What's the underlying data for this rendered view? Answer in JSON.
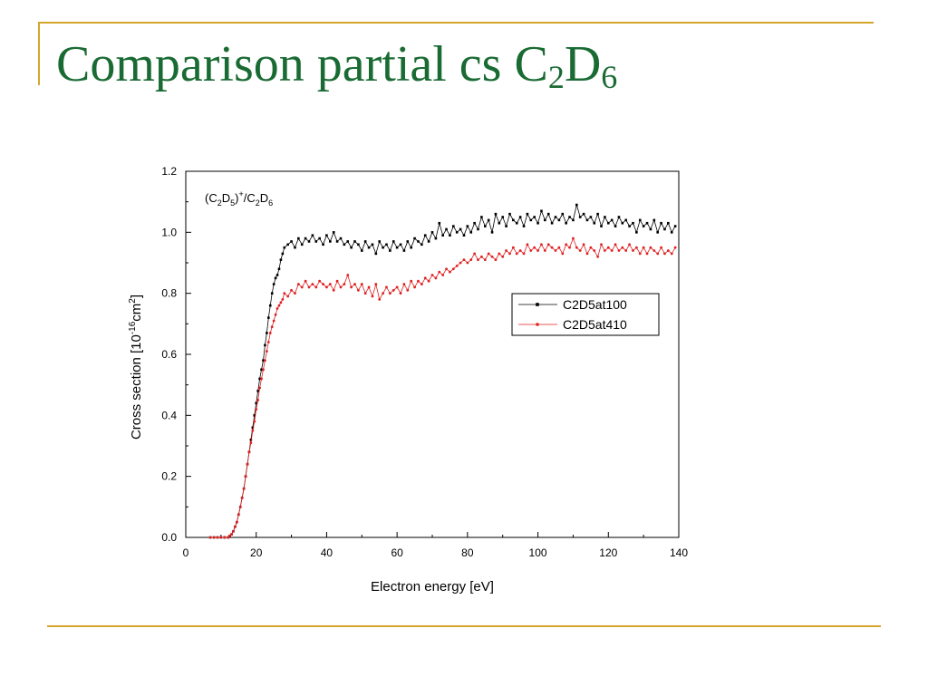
{
  "slide": {
    "title": {
      "text": "Comparison partial cs C",
      "sub1": "2",
      "mid": "D",
      "sub2": "6"
    },
    "accent_color": "#d4a72c",
    "title_color": "#1a6b33"
  },
  "chart_data": {
    "type": "line",
    "annotation": {
      "p1": "(C",
      "s1": "2",
      "p2": "D",
      "s2": "5",
      "p3": ")",
      "sup": "+",
      "p4": "/C",
      "s3": "2",
      "p5": "D",
      "s4": "6"
    },
    "xlabel": "Electron energy [eV]",
    "ylabel": {
      "pre": "Cross section [10",
      "sup1": "-16",
      "mid": "cm",
      "sup2": "2",
      "post": "]"
    },
    "xlim": [
      0,
      140
    ],
    "ylim": [
      0,
      1.2
    ],
    "x_ticks": [
      0,
      20,
      40,
      60,
      80,
      100,
      120,
      140
    ],
    "y_ticks": [
      "0.0",
      "0.2",
      "0.4",
      "0.6",
      "0.8",
      "1.0",
      "1.2"
    ],
    "legend_position": "right",
    "grid": false,
    "series": [
      {
        "name": "C2D5at100",
        "color": "#000000",
        "marker": "square",
        "points": [
          [
            7,
            0
          ],
          [
            8,
            0
          ],
          [
            9,
            0
          ],
          [
            10,
            0
          ],
          [
            11,
            0
          ],
          [
            12,
            0
          ],
          [
            12.5,
            0.005
          ],
          [
            13,
            0.01
          ],
          [
            13.5,
            0.02
          ],
          [
            14,
            0.035
          ],
          [
            14.5,
            0.05
          ],
          [
            15,
            0.075
          ],
          [
            15.5,
            0.1
          ],
          [
            16,
            0.13
          ],
          [
            16.5,
            0.16
          ],
          [
            17,
            0.2
          ],
          [
            17.5,
            0.24
          ],
          [
            18,
            0.28
          ],
          [
            18.5,
            0.32
          ],
          [
            19,
            0.36
          ],
          [
            19.5,
            0.4
          ],
          [
            20,
            0.44
          ],
          [
            20.5,
            0.48
          ],
          [
            21,
            0.52
          ],
          [
            21.5,
            0.55
          ],
          [
            22,
            0.58
          ],
          [
            22.5,
            0.63
          ],
          [
            23,
            0.67
          ],
          [
            23.5,
            0.72
          ],
          [
            24,
            0.76
          ],
          [
            24.5,
            0.8
          ],
          [
            25,
            0.83
          ],
          [
            25.5,
            0.85
          ],
          [
            26,
            0.86
          ],
          [
            26.5,
            0.88
          ],
          [
            27,
            0.91
          ],
          [
            27.5,
            0.93
          ],
          [
            28,
            0.95
          ],
          [
            29,
            0.96
          ],
          [
            30,
            0.97
          ],
          [
            31,
            0.95
          ],
          [
            32,
            0.98
          ],
          [
            33,
            0.96
          ],
          [
            34,
            0.98
          ],
          [
            35,
            0.97
          ],
          [
            36,
            0.99
          ],
          [
            37,
            0.97
          ],
          [
            38,
            0.98
          ],
          [
            39,
            0.96
          ],
          [
            40,
            0.99
          ],
          [
            41,
            0.97
          ],
          [
            42,
            1.0
          ],
          [
            43,
            0.97
          ],
          [
            44,
            0.98
          ],
          [
            45,
            0.96
          ],
          [
            46,
            0.97
          ],
          [
            47,
            0.95
          ],
          [
            48,
            0.97
          ],
          [
            49,
            0.96
          ],
          [
            50,
            0.94
          ],
          [
            51,
            0.97
          ],
          [
            52,
            0.95
          ],
          [
            53,
            0.96
          ],
          [
            54,
            0.93
          ],
          [
            55,
            0.97
          ],
          [
            56,
            0.95
          ],
          [
            57,
            0.96
          ],
          [
            58,
            0.94
          ],
          [
            59,
            0.97
          ],
          [
            60,
            0.95
          ],
          [
            61,
            0.96
          ],
          [
            62,
            0.94
          ],
          [
            63,
            0.97
          ],
          [
            64,
            0.95
          ],
          [
            65,
            0.98
          ],
          [
            66,
            0.97
          ],
          [
            67,
            0.96
          ],
          [
            68,
            0.99
          ],
          [
            69,
            0.97
          ],
          [
            70,
            1.0
          ],
          [
            71,
            0.98
          ],
          [
            72,
            1.03
          ],
          [
            73,
            0.99
          ],
          [
            74,
            1.01
          ],
          [
            75,
            0.99
          ],
          [
            76,
            1.02
          ],
          [
            77,
            1.0
          ],
          [
            78,
            1.01
          ],
          [
            79,
            0.99
          ],
          [
            80,
            1.02
          ],
          [
            81,
            1.0
          ],
          [
            82,
            1.03
          ],
          [
            83,
            1.01
          ],
          [
            84,
            1.05
          ],
          [
            85,
            1.02
          ],
          [
            86,
            1.04
          ],
          [
            87,
            1.0
          ],
          [
            88,
            1.06
          ],
          [
            89,
            1.03
          ],
          [
            90,
            1.05
          ],
          [
            91,
            1.02
          ],
          [
            92,
            1.06
          ],
          [
            93,
            1.04
          ],
          [
            94,
            1.03
          ],
          [
            95,
            1.05
          ],
          [
            96,
            1.02
          ],
          [
            97,
            1.06
          ],
          [
            98,
            1.04
          ],
          [
            99,
            1.05
          ],
          [
            100,
            1.03
          ],
          [
            101,
            1.07
          ],
          [
            102,
            1.04
          ],
          [
            103,
            1.06
          ],
          [
            104,
            1.03
          ],
          [
            105,
            1.05
          ],
          [
            106,
            1.04
          ],
          [
            107,
            1.06
          ],
          [
            108,
            1.03
          ],
          [
            109,
            1.05
          ],
          [
            110,
            1.04
          ],
          [
            111,
            1.09
          ],
          [
            112,
            1.05
          ],
          [
            113,
            1.06
          ],
          [
            114,
            1.04
          ],
          [
            115,
            1.05
          ],
          [
            116,
            1.03
          ],
          [
            117,
            1.06
          ],
          [
            118,
            1.02
          ],
          [
            119,
            1.05
          ],
          [
            120,
            1.03
          ],
          [
            121,
            1.04
          ],
          [
            122,
            1.02
          ],
          [
            123,
            1.05
          ],
          [
            124,
            1.03
          ],
          [
            125,
            1.04
          ],
          [
            126,
            1.02
          ],
          [
            127,
            1.03
          ],
          [
            128,
            1.0
          ],
          [
            129,
            1.04
          ],
          [
            130,
            1.02
          ],
          [
            131,
            1.03
          ],
          [
            132,
            1.01
          ],
          [
            133,
            1.04
          ],
          [
            134,
            1.0
          ],
          [
            135,
            1.03
          ],
          [
            136,
            1.01
          ],
          [
            137,
            1.03
          ],
          [
            138,
            1.0
          ],
          [
            139,
            1.02
          ]
        ]
      },
      {
        "name": "C2D5at410",
        "color": "#e02020",
        "marker": "circle",
        "points": [
          [
            7,
            0
          ],
          [
            8,
            0
          ],
          [
            9,
            0
          ],
          [
            10,
            0
          ],
          [
            11,
            0
          ],
          [
            12,
            0
          ],
          [
            12.5,
            0.005
          ],
          [
            13,
            0.01
          ],
          [
            13.5,
            0.02
          ],
          [
            14,
            0.035
          ],
          [
            14.5,
            0.05
          ],
          [
            15,
            0.075
          ],
          [
            15.5,
            0.1
          ],
          [
            16,
            0.13
          ],
          [
            16.5,
            0.16
          ],
          [
            17,
            0.2
          ],
          [
            17.5,
            0.24
          ],
          [
            18,
            0.28
          ],
          [
            18.5,
            0.31
          ],
          [
            19,
            0.35
          ],
          [
            19.5,
            0.38
          ],
          [
            20,
            0.42
          ],
          [
            20.5,
            0.45
          ],
          [
            21,
            0.49
          ],
          [
            21.5,
            0.52
          ],
          [
            22,
            0.55
          ],
          [
            22.5,
            0.58
          ],
          [
            23,
            0.61
          ],
          [
            23.5,
            0.64
          ],
          [
            24,
            0.67
          ],
          [
            24.5,
            0.69
          ],
          [
            25,
            0.71
          ],
          [
            25.5,
            0.73
          ],
          [
            26,
            0.75
          ],
          [
            26.5,
            0.76
          ],
          [
            27,
            0.77
          ],
          [
            27.5,
            0.78
          ],
          [
            28,
            0.8
          ],
          [
            29,
            0.79
          ],
          [
            30,
            0.81
          ],
          [
            31,
            0.8
          ],
          [
            32,
            0.83
          ],
          [
            33,
            0.82
          ],
          [
            34,
            0.84
          ],
          [
            35,
            0.82
          ],
          [
            36,
            0.83
          ],
          [
            37,
            0.82
          ],
          [
            38,
            0.84
          ],
          [
            39,
            0.83
          ],
          [
            40,
            0.82
          ],
          [
            41,
            0.83
          ],
          [
            42,
            0.81
          ],
          [
            43,
            0.84
          ],
          [
            44,
            0.82
          ],
          [
            45,
            0.83
          ],
          [
            46,
            0.86
          ],
          [
            47,
            0.82
          ],
          [
            48,
            0.83
          ],
          [
            49,
            0.81
          ],
          [
            50,
            0.83
          ],
          [
            51,
            0.8
          ],
          [
            52,
            0.82
          ],
          [
            53,
            0.79
          ],
          [
            54,
            0.83
          ],
          [
            55,
            0.78
          ],
          [
            56,
            0.8
          ],
          [
            57,
            0.82
          ],
          [
            58,
            0.8
          ],
          [
            59,
            0.81
          ],
          [
            60,
            0.82
          ],
          [
            61,
            0.8
          ],
          [
            62,
            0.83
          ],
          [
            63,
            0.81
          ],
          [
            64,
            0.84
          ],
          [
            65,
            0.82
          ],
          [
            66,
            0.84
          ],
          [
            67,
            0.83
          ],
          [
            68,
            0.85
          ],
          [
            69,
            0.84
          ],
          [
            70,
            0.86
          ],
          [
            71,
            0.85
          ],
          [
            72,
            0.87
          ],
          [
            73,
            0.86
          ],
          [
            74,
            0.88
          ],
          [
            75,
            0.87
          ],
          [
            76,
            0.88
          ],
          [
            77,
            0.89
          ],
          [
            78,
            0.9
          ],
          [
            79,
            0.91
          ],
          [
            80,
            0.9
          ],
          [
            81,
            0.91
          ],
          [
            82,
            0.93
          ],
          [
            83,
            0.91
          ],
          [
            84,
            0.92
          ],
          [
            85,
            0.91
          ],
          [
            86,
            0.93
          ],
          [
            87,
            0.92
          ],
          [
            88,
            0.91
          ],
          [
            89,
            0.93
          ],
          [
            90,
            0.92
          ],
          [
            91,
            0.94
          ],
          [
            92,
            0.93
          ],
          [
            93,
            0.95
          ],
          [
            94,
            0.93
          ],
          [
            95,
            0.94
          ],
          [
            96,
            0.93
          ],
          [
            97,
            0.96
          ],
          [
            98,
            0.94
          ],
          [
            99,
            0.95
          ],
          [
            100,
            0.94
          ],
          [
            101,
            0.96
          ],
          [
            102,
            0.94
          ],
          [
            103,
            0.96
          ],
          [
            104,
            0.95
          ],
          [
            105,
            0.94
          ],
          [
            106,
            0.95
          ],
          [
            107,
            0.93
          ],
          [
            108,
            0.96
          ],
          [
            109,
            0.95
          ],
          [
            110,
            0.98
          ],
          [
            111,
            0.95
          ],
          [
            112,
            0.94
          ],
          [
            113,
            0.96
          ],
          [
            114,
            0.93
          ],
          [
            115,
            0.95
          ],
          [
            116,
            0.94
          ],
          [
            117,
            0.92
          ],
          [
            118,
            0.96
          ],
          [
            119,
            0.94
          ],
          [
            120,
            0.95
          ],
          [
            121,
            0.94
          ],
          [
            122,
            0.96
          ],
          [
            123,
            0.94
          ],
          [
            124,
            0.95
          ],
          [
            125,
            0.94
          ],
          [
            126,
            0.96
          ],
          [
            127,
            0.94
          ],
          [
            128,
            0.95
          ],
          [
            129,
            0.93
          ],
          [
            130,
            0.95
          ],
          [
            131,
            0.93
          ],
          [
            132,
            0.95
          ],
          [
            133,
            0.94
          ],
          [
            134,
            0.93
          ],
          [
            135,
            0.95
          ],
          [
            136,
            0.93
          ],
          [
            137,
            0.94
          ],
          [
            138,
            0.93
          ],
          [
            139,
            0.95
          ]
        ]
      }
    ]
  }
}
